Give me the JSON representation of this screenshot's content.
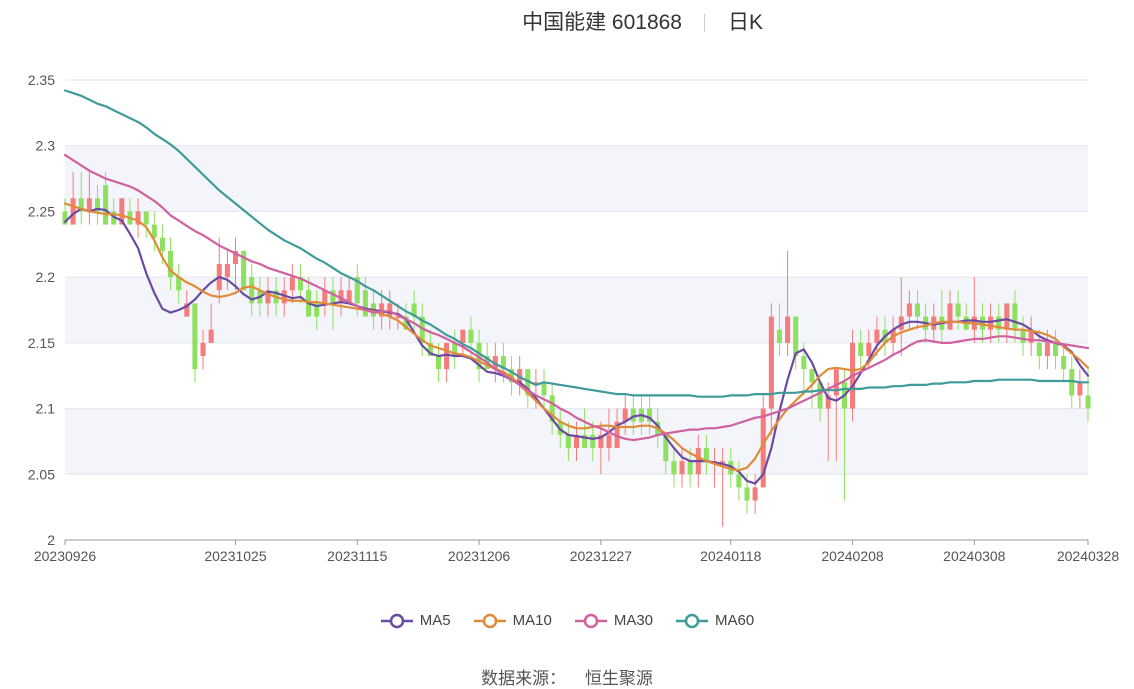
{
  "header": {
    "title": "中国能建 601868",
    "period": "日K"
  },
  "source": {
    "label": "数据来源：",
    "value": "恒生聚源"
  },
  "chart_data": {
    "type": "candlestick",
    "ylim": [
      2,
      2.35
    ],
    "yticks": [
      "2",
      "2.05",
      "2.1",
      "2.15",
      "2.2",
      "2.25",
      "2.3",
      "2.35"
    ],
    "yticks_values": [
      2,
      2.05,
      2.1,
      2.15,
      2.2,
      2.25,
      2.3,
      2.35
    ],
    "grid": true,
    "xtick_labels": [
      "20230926",
      "20231025",
      "20231115",
      "20231206",
      "20231227",
      "20240118",
      "20240208",
      "20240308",
      "20240328"
    ],
    "xtick_index": [
      0,
      21,
      36,
      51,
      66,
      82,
      97,
      112,
      126
    ],
    "n": 127,
    "candles_note": "open, close, low, high per trading day",
    "candles": [
      [
        2.25,
        2.24,
        2.24,
        2.26
      ],
      [
        2.24,
        2.26,
        2.24,
        2.28
      ],
      [
        2.26,
        2.25,
        2.24,
        2.28
      ],
      [
        2.25,
        2.26,
        2.24,
        2.28
      ],
      [
        2.26,
        2.25,
        2.24,
        2.27
      ],
      [
        2.27,
        2.24,
        2.24,
        2.28
      ],
      [
        2.25,
        2.24,
        2.24,
        2.26
      ],
      [
        2.24,
        2.26,
        2.24,
        2.26
      ],
      [
        2.25,
        2.24,
        2.24,
        2.26
      ],
      [
        2.24,
        2.25,
        2.23,
        2.26
      ],
      [
        2.25,
        2.24,
        2.23,
        2.25
      ],
      [
        2.24,
        2.23,
        2.22,
        2.25
      ],
      [
        2.23,
        2.22,
        2.21,
        2.24
      ],
      [
        2.22,
        2.2,
        2.19,
        2.23
      ],
      [
        2.2,
        2.19,
        2.18,
        2.21
      ],
      [
        2.17,
        2.18,
        2.17,
        2.19
      ],
      [
        2.18,
        2.13,
        2.12,
        2.18
      ],
      [
        2.14,
        2.15,
        2.13,
        2.16
      ],
      [
        2.15,
        2.16,
        2.15,
        2.18
      ],
      [
        2.19,
        2.21,
        2.18,
        2.23
      ],
      [
        2.2,
        2.21,
        2.19,
        2.22
      ],
      [
        2.21,
        2.22,
        2.19,
        2.23
      ],
      [
        2.22,
        2.19,
        2.19,
        2.22
      ],
      [
        2.2,
        2.18,
        2.17,
        2.21
      ],
      [
        2.19,
        2.18,
        2.17,
        2.2
      ],
      [
        2.18,
        2.19,
        2.17,
        2.2
      ],
      [
        2.19,
        2.18,
        2.17,
        2.2
      ],
      [
        2.18,
        2.19,
        2.17,
        2.2
      ],
      [
        2.19,
        2.2,
        2.18,
        2.21
      ],
      [
        2.2,
        2.19,
        2.18,
        2.21
      ],
      [
        2.19,
        2.17,
        2.17,
        2.2
      ],
      [
        2.18,
        2.17,
        2.16,
        2.19
      ],
      [
        2.18,
        2.19,
        2.17,
        2.2
      ],
      [
        2.19,
        2.18,
        2.16,
        2.2
      ],
      [
        2.18,
        2.19,
        2.17,
        2.2
      ],
      [
        2.18,
        2.19,
        2.18,
        2.2
      ],
      [
        2.2,
        2.18,
        2.17,
        2.21
      ],
      [
        2.19,
        2.17,
        2.17,
        2.2
      ],
      [
        2.18,
        2.17,
        2.16,
        2.19
      ],
      [
        2.17,
        2.18,
        2.16,
        2.19
      ],
      [
        2.17,
        2.18,
        2.16,
        2.19
      ],
      [
        2.17,
        2.17,
        2.16,
        2.18
      ],
      [
        2.17,
        2.16,
        2.16,
        2.18
      ],
      [
        2.18,
        2.17,
        2.16,
        2.19
      ],
      [
        2.17,
        2.15,
        2.14,
        2.18
      ],
      [
        2.15,
        2.14,
        2.14,
        2.16
      ],
      [
        2.14,
        2.13,
        2.12,
        2.15
      ],
      [
        2.13,
        2.15,
        2.12,
        2.15
      ],
      [
        2.15,
        2.14,
        2.13,
        2.16
      ],
      [
        2.15,
        2.16,
        2.14,
        2.16
      ],
      [
        2.16,
        2.15,
        2.14,
        2.17
      ],
      [
        2.15,
        2.13,
        2.12,
        2.16
      ],
      [
        2.14,
        2.13,
        2.13,
        2.15
      ],
      [
        2.13,
        2.14,
        2.12,
        2.15
      ],
      [
        2.14,
        2.13,
        2.12,
        2.15
      ],
      [
        2.13,
        2.12,
        2.11,
        2.14
      ],
      [
        2.12,
        2.13,
        2.11,
        2.14
      ],
      [
        2.13,
        2.11,
        2.1,
        2.13
      ],
      [
        2.12,
        2.12,
        2.1,
        2.13
      ],
      [
        2.12,
        2.11,
        2.1,
        2.13
      ],
      [
        2.11,
        2.09,
        2.08,
        2.12
      ],
      [
        2.09,
        2.08,
        2.07,
        2.1
      ],
      [
        2.08,
        2.07,
        2.06,
        2.09
      ],
      [
        2.07,
        2.08,
        2.06,
        2.09
      ],
      [
        2.08,
        2.07,
        2.07,
        2.1
      ],
      [
        2.08,
        2.07,
        2.06,
        2.09
      ],
      [
        2.07,
        2.08,
        2.05,
        2.09
      ],
      [
        2.07,
        2.08,
        2.06,
        2.1
      ],
      [
        2.07,
        2.09,
        2.07,
        2.1
      ],
      [
        2.09,
        2.1,
        2.08,
        2.11
      ],
      [
        2.1,
        2.09,
        2.08,
        2.11
      ],
      [
        2.1,
        2.09,
        2.08,
        2.11
      ],
      [
        2.1,
        2.09,
        2.08,
        2.11
      ],
      [
        2.09,
        2.08,
        2.07,
        2.1
      ],
      [
        2.08,
        2.06,
        2.05,
        2.08
      ],
      [
        2.06,
        2.05,
        2.04,
        2.07
      ],
      [
        2.05,
        2.06,
        2.04,
        2.07
      ],
      [
        2.06,
        2.05,
        2.04,
        2.07
      ],
      [
        2.05,
        2.07,
        2.04,
        2.08
      ],
      [
        2.07,
        2.06,
        2.05,
        2.08
      ],
      [
        2.06,
        2.06,
        2.04,
        2.07
      ],
      [
        2.06,
        2.06,
        2.01,
        2.07
      ],
      [
        2.06,
        2.05,
        2.04,
        2.07
      ],
      [
        2.05,
        2.04,
        2.03,
        2.06
      ],
      [
        2.04,
        2.03,
        2.02,
        2.05
      ],
      [
        2.03,
        2.04,
        2.02,
        2.05
      ],
      [
        2.04,
        2.1,
        2.04,
        2.11
      ],
      [
        2.1,
        2.17,
        2.08,
        2.18
      ],
      [
        2.16,
        2.15,
        2.14,
        2.18
      ],
      [
        2.15,
        2.17,
        2.14,
        2.22
      ],
      [
        2.17,
        2.14,
        2.13,
        2.17
      ],
      [
        2.14,
        2.13,
        2.11,
        2.15
      ],
      [
        2.13,
        2.12,
        2.1,
        2.13
      ],
      [
        2.12,
        2.1,
        2.09,
        2.12
      ],
      [
        2.1,
        2.11,
        2.06,
        2.12
      ],
      [
        2.11,
        2.13,
        2.06,
        2.13
      ],
      [
        2.12,
        2.1,
        2.03,
        2.13
      ],
      [
        2.1,
        2.15,
        2.09,
        2.16
      ],
      [
        2.15,
        2.14,
        2.13,
        2.16
      ],
      [
        2.14,
        2.15,
        2.13,
        2.16
      ],
      [
        2.15,
        2.16,
        2.14,
        2.17
      ],
      [
        2.16,
        2.15,
        2.14,
        2.17
      ],
      [
        2.15,
        2.16,
        2.14,
        2.17
      ],
      [
        2.16,
        2.17,
        2.14,
        2.2
      ],
      [
        2.17,
        2.18,
        2.16,
        2.19
      ],
      [
        2.18,
        2.17,
        2.16,
        2.19
      ],
      [
        2.17,
        2.16,
        2.15,
        2.18
      ],
      [
        2.16,
        2.17,
        2.15,
        2.18
      ],
      [
        2.17,
        2.16,
        2.15,
        2.19
      ],
      [
        2.16,
        2.18,
        2.16,
        2.19
      ],
      [
        2.18,
        2.17,
        2.16,
        2.19
      ],
      [
        2.17,
        2.16,
        2.16,
        2.18
      ],
      [
        2.16,
        2.17,
        2.15,
        2.2
      ],
      [
        2.17,
        2.16,
        2.15,
        2.18
      ],
      [
        2.16,
        2.17,
        2.15,
        2.18
      ],
      [
        2.17,
        2.16,
        2.15,
        2.18
      ],
      [
        2.16,
        2.18,
        2.15,
        2.18
      ],
      [
        2.18,
        2.16,
        2.15,
        2.19
      ],
      [
        2.16,
        2.15,
        2.14,
        2.17
      ],
      [
        2.15,
        2.16,
        2.14,
        2.17
      ],
      [
        2.15,
        2.14,
        2.13,
        2.16
      ],
      [
        2.14,
        2.15,
        2.13,
        2.16
      ],
      [
        2.15,
        2.14,
        2.13,
        2.16
      ],
      [
        2.14,
        2.13,
        2.12,
        2.15
      ],
      [
        2.13,
        2.11,
        2.1,
        2.14
      ],
      [
        2.11,
        2.12,
        2.1,
        2.13
      ],
      [
        2.11,
        2.1,
        2.09,
        2.13
      ]
    ],
    "series": [
      {
        "name": "MA5",
        "color": "#6b4aa3",
        "values": [
          2.242,
          2.248,
          2.252,
          2.25,
          2.252,
          2.251,
          2.246,
          2.243,
          2.233,
          2.222,
          2.203,
          2.188,
          2.176,
          2.173,
          2.175,
          2.178,
          2.183,
          2.19,
          2.196,
          2.2,
          2.198,
          2.193,
          2.187,
          2.183,
          2.185,
          2.189,
          2.188,
          2.186,
          2.184,
          2.185,
          2.18,
          2.178,
          2.179,
          2.18,
          2.181,
          2.18,
          2.178,
          2.176,
          2.175,
          2.174,
          2.173,
          2.172,
          2.168,
          2.158,
          2.148,
          2.142,
          2.14,
          2.141,
          2.14,
          2.14,
          2.138,
          2.133,
          2.128,
          2.127,
          2.125,
          2.122,
          2.12,
          2.115,
          2.108,
          2.1,
          2.092,
          2.084,
          2.08,
          2.079,
          2.078,
          2.077,
          2.078,
          2.082,
          2.087,
          2.09,
          2.094,
          2.095,
          2.093,
          2.087,
          2.078,
          2.07,
          2.063,
          2.06,
          2.06,
          2.06,
          2.059,
          2.058,
          2.056,
          2.052,
          2.045,
          2.043,
          2.05,
          2.07,
          2.098,
          2.122,
          2.142,
          2.145,
          2.135,
          2.12,
          2.108,
          2.106,
          2.11,
          2.117,
          2.127,
          2.137,
          2.148,
          2.155,
          2.16,
          2.164,
          2.166,
          2.166,
          2.165,
          2.164,
          2.165,
          2.166,
          2.166,
          2.167,
          2.167,
          2.166,
          2.166,
          2.167,
          2.168,
          2.166,
          2.164,
          2.16,
          2.155,
          2.152,
          2.15,
          2.148,
          2.143,
          2.133,
          2.125
        ]
      },
      {
        "name": "MA10",
        "color": "#e08a3a",
        "values": [
          2.256,
          2.254,
          2.252,
          2.25,
          2.249,
          2.248,
          2.248,
          2.247,
          2.245,
          2.243,
          2.238,
          2.228,
          2.215,
          2.205,
          2.2,
          2.196,
          2.193,
          2.189,
          2.186,
          2.185,
          2.186,
          2.188,
          2.192,
          2.193,
          2.19,
          2.187,
          2.185,
          2.183,
          2.182,
          2.182,
          2.181,
          2.181,
          2.18,
          2.179,
          2.178,
          2.177,
          2.176,
          2.175,
          2.174,
          2.172,
          2.17,
          2.167,
          2.162,
          2.157,
          2.152,
          2.148,
          2.146,
          2.144,
          2.142,
          2.141,
          2.139,
          2.136,
          2.133,
          2.13,
          2.128,
          2.124,
          2.118,
          2.112,
          2.106,
          2.1,
          2.095,
          2.09,
          2.087,
          2.085,
          2.085,
          2.086,
          2.087,
          2.087,
          2.086,
          2.086,
          2.086,
          2.087,
          2.087,
          2.085,
          2.081,
          2.076,
          2.07,
          2.066,
          2.063,
          2.06,
          2.058,
          2.056,
          2.054,
          2.053,
          2.055,
          2.062,
          2.073,
          2.083,
          2.092,
          2.1,
          2.106,
          2.112,
          2.118,
          2.125,
          2.13,
          2.131,
          2.13,
          2.129,
          2.13,
          2.135,
          2.143,
          2.15,
          2.155,
          2.158,
          2.16,
          2.162,
          2.163,
          2.165,
          2.166,
          2.166,
          2.166,
          2.165,
          2.165,
          2.164,
          2.163,
          2.162,
          2.161,
          2.16,
          2.16,
          2.159,
          2.158,
          2.156,
          2.153,
          2.147,
          2.142,
          2.137,
          2.131
        ]
      },
      {
        "name": "MA30",
        "color": "#d0609f",
        "values": [
          2.293,
          2.289,
          2.285,
          2.281,
          2.278,
          2.275,
          2.273,
          2.271,
          2.269,
          2.266,
          2.262,
          2.258,
          2.253,
          2.247,
          2.243,
          2.239,
          2.235,
          2.232,
          2.228,
          2.224,
          2.221,
          2.218,
          2.215,
          2.212,
          2.21,
          2.207,
          2.205,
          2.203,
          2.201,
          2.199,
          2.196,
          2.193,
          2.19,
          2.187,
          2.184,
          2.181,
          2.178,
          2.175,
          2.173,
          2.174,
          2.174,
          2.171,
          2.168,
          2.165,
          2.161,
          2.158,
          2.156,
          2.153,
          2.15,
          2.147,
          2.143,
          2.139,
          2.135,
          2.13,
          2.126,
          2.122,
          2.118,
          2.114,
          2.11,
          2.107,
          2.104,
          2.1,
          2.097,
          2.093,
          2.09,
          2.087,
          2.085,
          2.082,
          2.079,
          2.077,
          2.076,
          2.077,
          2.078,
          2.08,
          2.081,
          2.082,
          2.083,
          2.084,
          2.084,
          2.085,
          2.085,
          2.086,
          2.087,
          2.089,
          2.091,
          2.093,
          2.094,
          2.096,
          2.098,
          2.1,
          2.103,
          2.106,
          2.109,
          2.112,
          2.115,
          2.118,
          2.121,
          2.125,
          2.128,
          2.131,
          2.134,
          2.137,
          2.141,
          2.144,
          2.148,
          2.151,
          2.152,
          2.151,
          2.15,
          2.15,
          2.151,
          2.152,
          2.153,
          2.153,
          2.154,
          2.155,
          2.155,
          2.154,
          2.153,
          2.152,
          2.152,
          2.151,
          2.15,
          2.149,
          2.148,
          2.147,
          2.146
        ]
      },
      {
        "name": "MA60",
        "color": "#3f9a9a",
        "values": [
          2.342,
          2.34,
          2.338,
          2.335,
          2.332,
          2.33,
          2.327,
          2.324,
          2.321,
          2.318,
          2.314,
          2.309,
          2.305,
          2.301,
          2.296,
          2.29,
          2.284,
          2.278,
          2.272,
          2.266,
          2.261,
          2.256,
          2.251,
          2.246,
          2.241,
          2.236,
          2.232,
          2.228,
          2.225,
          2.222,
          2.218,
          2.214,
          2.211,
          2.207,
          2.203,
          2.2,
          2.197,
          2.193,
          2.19,
          2.186,
          2.182,
          2.178,
          2.174,
          2.171,
          2.167,
          2.164,
          2.16,
          2.156,
          2.153,
          2.149,
          2.146,
          2.142,
          2.138,
          2.134,
          2.131,
          2.128,
          2.124,
          2.121,
          2.118,
          2.12,
          2.119,
          2.118,
          2.117,
          2.116,
          2.115,
          2.114,
          2.113,
          2.112,
          2.111,
          2.111,
          2.11,
          2.11,
          2.11,
          2.11,
          2.11,
          2.11,
          2.11,
          2.11,
          2.109,
          2.109,
          2.109,
          2.109,
          2.11,
          2.11,
          2.11,
          2.111,
          2.111,
          2.111,
          2.112,
          2.112,
          2.112,
          2.113,
          2.113,
          2.114,
          2.114,
          2.114,
          2.115,
          2.115,
          2.115,
          2.116,
          2.116,
          2.116,
          2.117,
          2.117,
          2.118,
          2.118,
          2.118,
          2.119,
          2.119,
          2.12,
          2.12,
          2.12,
          2.121,
          2.121,
          2.121,
          2.122,
          2.122,
          2.122,
          2.122,
          2.122,
          2.121,
          2.121,
          2.121,
          2.121,
          2.121,
          2.12,
          2.12
        ]
      }
    ],
    "up_color": "#f47c7c",
    "down_color": "#8ee05f"
  }
}
